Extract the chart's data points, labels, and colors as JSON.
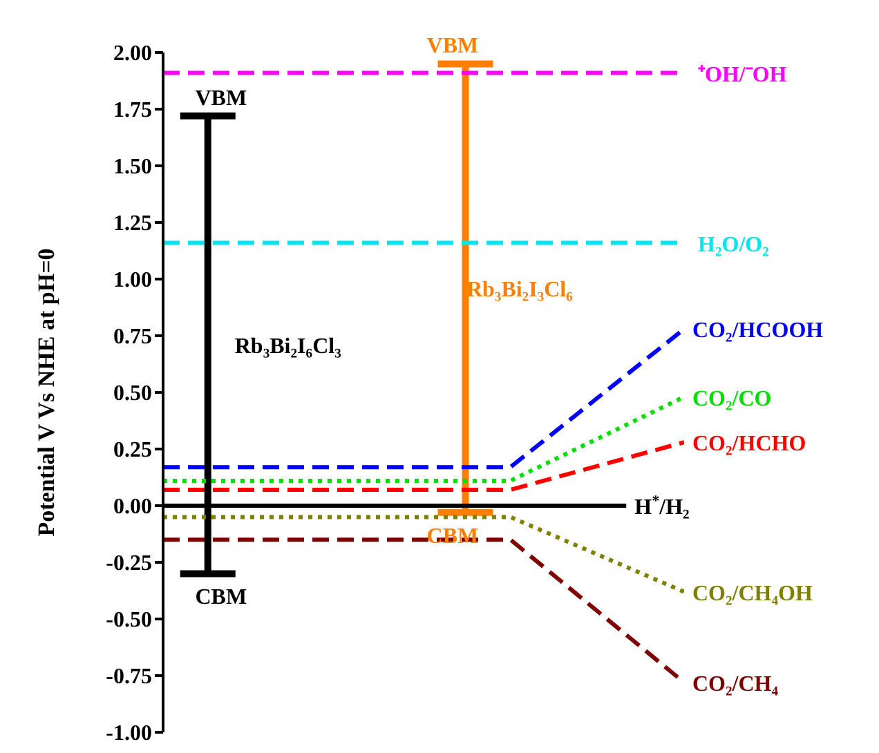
{
  "chart_data": {
    "type": "line",
    "ylabel": "Potential V Vs NHE at pH=0",
    "categories": [
      null,
      null,
      null,
      null,
      null,
      null,
      null,
      null,
      null,
      null
    ],
    "ylim": [
      -1,
      2
    ],
    "yticks": [
      {
        "value": 2,
        "label": "2.00"
      },
      {
        "value": 1.75,
        "label": "1.75"
      },
      {
        "value": 1.5,
        "label": "1.50"
      },
      {
        "value": 1.25,
        "label": "1.25"
      },
      {
        "value": 1,
        "label": "1.00"
      },
      {
        "value": 0.75,
        "label": "0.75"
      },
      {
        "value": 0.5,
        "label": "0.50"
      },
      {
        "value": 0.25,
        "label": "0.25"
      },
      {
        "value": 0,
        "label": "0.00"
      },
      {
        "value": -0.25,
        "label": "-0.25"
      },
      {
        "value": -0.5,
        "label": "-0.50"
      },
      {
        "value": -0.75,
        "label": "-0.75"
      },
      {
        "value": -1,
        "label": "-1.00"
      }
    ],
    "grid": false,
    "legend": false,
    "marker": "none",
    "series": [
      {
        "name": "CO₂/HCOOH",
        "color": "#0000ff",
        "line_style": "dashed",
        "values": [
          0.17,
          0.17,
          0.17,
          0.17,
          0.17,
          0.17,
          0.17,
          null,
          null,
          0.78
        ]
      },
      {
        "name": "CO₂/CO",
        "color": "#00e000",
        "line_style": "dotted",
        "values": [
          0.11,
          0.11,
          0.11,
          0.11,
          0.11,
          0.11,
          0.11,
          null,
          null,
          0.48
        ]
      },
      {
        "name": "CO₂/HCHO",
        "color": "#ff0000",
        "line_style": "dashed",
        "values": [
          0.07,
          0.07,
          0.07,
          0.07,
          0.07,
          0.07,
          0.07,
          null,
          null,
          0.28
        ]
      },
      {
        "name": "H$^{*}$/H₂",
        "color": "#000000",
        "line_style": "solid",
        "values": [
          0,
          0,
          0,
          0,
          0,
          0,
          0,
          0,
          0,
          null
        ]
      },
      {
        "name": "CO₂/CH₄OH",
        "color": "#808000",
        "line_style": "dotted",
        "values": [
          -0.05,
          -0.05,
          -0.05,
          -0.05,
          -0.05,
          -0.05,
          -0.05,
          null,
          null,
          -0.38
        ]
      },
      {
        "name": "CO₂/CH₄",
        "color": "#800000",
        "line_style": "dashed",
        "values": [
          -0.15,
          -0.15,
          -0.15,
          -0.15,
          -0.15,
          -0.15,
          -0.15,
          null,
          null,
          -0.78
        ]
      },
      {
        "name": "Rb₃Bi₂I₆Cl₃",
        "type": "bar",
        "color": "#000000",
        "base": [
          null,
          -0.3,
          null,
          null,
          null,
          null,
          null,
          null,
          null,
          null
        ],
        "values": [
          null,
          2.02,
          null,
          null,
          null,
          null,
          null,
          null,
          null,
          null
        ]
      },
      {
        "name": "Rb₃Bi₂I₃Cl₆",
        "type": "bar",
        "color": "#ff8000",
        "base": [
          null,
          null,
          null,
          null,
          null,
          -0.03,
          null,
          null,
          null,
          null
        ],
        "values": [
          null,
          null,
          null,
          null,
          null,
          1.98,
          null,
          null,
          null,
          null
        ]
      }
    ],
    "ref_lines": [
      {
        "axis": "y",
        "value": 1.91,
        "label": "⁺OH/⁻OH",
        "color": "#ff00ff",
        "line_style": "dashed"
      },
      {
        "axis": "y",
        "value": 1.16,
        "label": "H₂O/O₂",
        "color": "#00e5ee",
        "line_style": "dashed"
      }
    ],
    "annotations": [
      "VBM",
      "CBM",
      "VBM",
      "CBM"
    ]
  }
}
